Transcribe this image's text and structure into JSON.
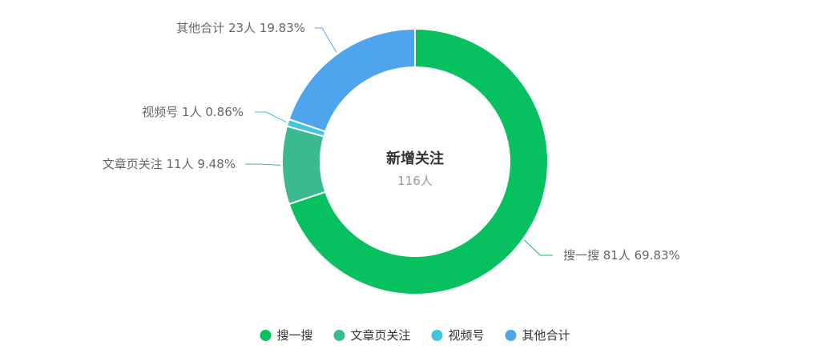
{
  "chart_data": {
    "type": "pie",
    "donut": true,
    "center": {
      "title": "新增关注",
      "subtitle": "116人"
    },
    "slices": [
      {
        "name": "搜一搜",
        "value": 81,
        "count_label": "81人",
        "percent_label": "69.83%",
        "color": "#07c160"
      },
      {
        "name": "文章页关注",
        "value": 11,
        "count_label": "11人",
        "percent_label": "9.48%",
        "color": "#3cba8f"
      },
      {
        "name": "视频号",
        "value": 1,
        "count_label": "1人",
        "percent_label": "0.86%",
        "color": "#3ec5df"
      },
      {
        "name": "其他合计",
        "value": 23,
        "count_label": "23人",
        "percent_label": "19.83%",
        "color": "#4fa4ee"
      }
    ],
    "legend": [
      "搜一搜",
      "文章页关注",
      "视频号",
      "其他合计"
    ],
    "legend_position": "bottom-center"
  }
}
